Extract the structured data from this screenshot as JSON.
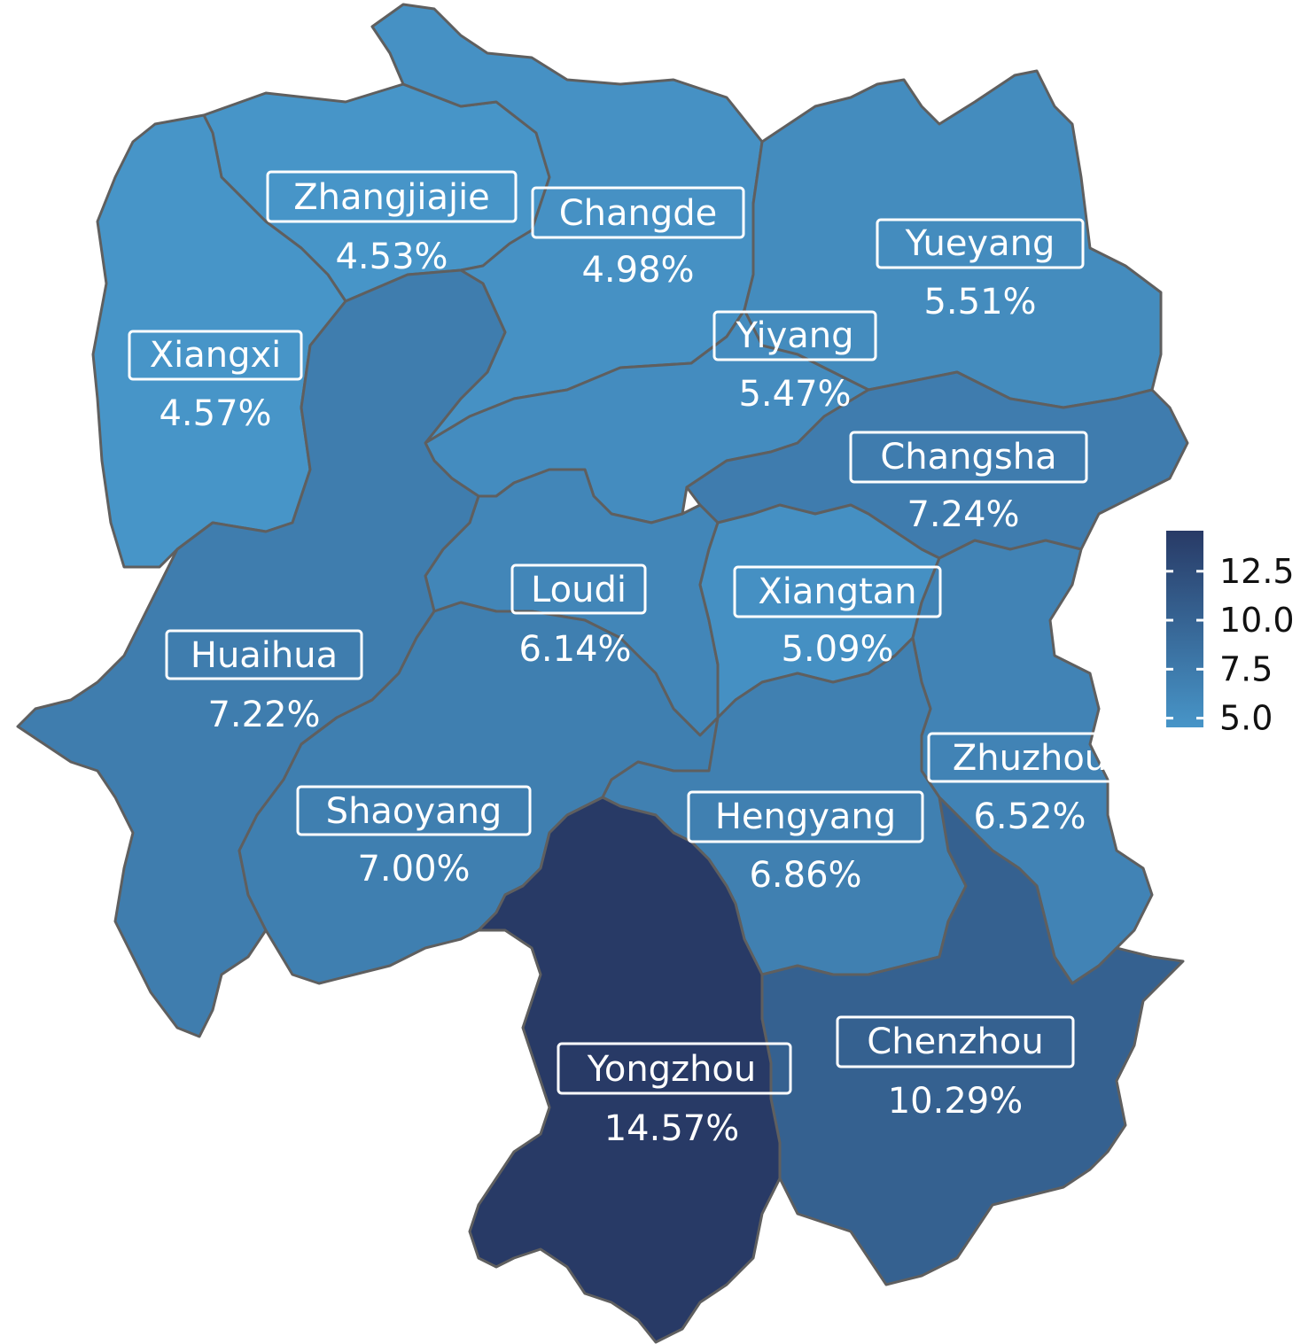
{
  "chart_data": {
    "type": "choropleth",
    "value_unit": "%",
    "regions": [
      {
        "id": "zhangjiajie",
        "name": "Zhangjiajie",
        "label": "4.53%",
        "value": 4.53
      },
      {
        "id": "changde",
        "name": "Changde",
        "label": "4.98%",
        "value": 4.98
      },
      {
        "id": "yueyang",
        "name": "Yueyang",
        "label": "5.51%",
        "value": 5.51
      },
      {
        "id": "xiangxi",
        "name": "Xiangxi",
        "label": "4.57%",
        "value": 4.57
      },
      {
        "id": "yiyang",
        "name": "Yiyang",
        "label": "5.47%",
        "value": 5.47
      },
      {
        "id": "changsha",
        "name": "Changsha",
        "label": "7.24%",
        "value": 7.24
      },
      {
        "id": "loudi",
        "name": "Loudi",
        "label": "6.14%",
        "value": 6.14
      },
      {
        "id": "xiangtan",
        "name": "Xiangtan",
        "label": "5.09%",
        "value": 5.09
      },
      {
        "id": "huaihua",
        "name": "Huaihua",
        "label": "7.22%",
        "value": 7.22
      },
      {
        "id": "zhuzhou",
        "name": "Zhuzhou",
        "label": "6.52%",
        "value": 6.52
      },
      {
        "id": "shaoyang",
        "name": "Shaoyang",
        "label": "7.00%",
        "value": 7.0
      },
      {
        "id": "hengyang",
        "name": "Hengyang",
        "label": "6.86%",
        "value": 6.86
      },
      {
        "id": "chenzhou",
        "name": "Chenzhou",
        "label": "10.29%",
        "value": 10.29
      },
      {
        "id": "yongzhou",
        "name": "Yongzhou",
        "label": "14.57%",
        "value": 14.57
      }
    ],
    "legend": {
      "placement": "right",
      "ticks": [
        "12.5",
        "10.0",
        "7.5",
        "5.0"
      ],
      "tick_values": [
        12.5,
        10.0,
        7.5,
        5.0
      ],
      "range": [
        4.53,
        14.57
      ],
      "color_low": "#4795c8",
      "color_high": "#283a66"
    }
  }
}
